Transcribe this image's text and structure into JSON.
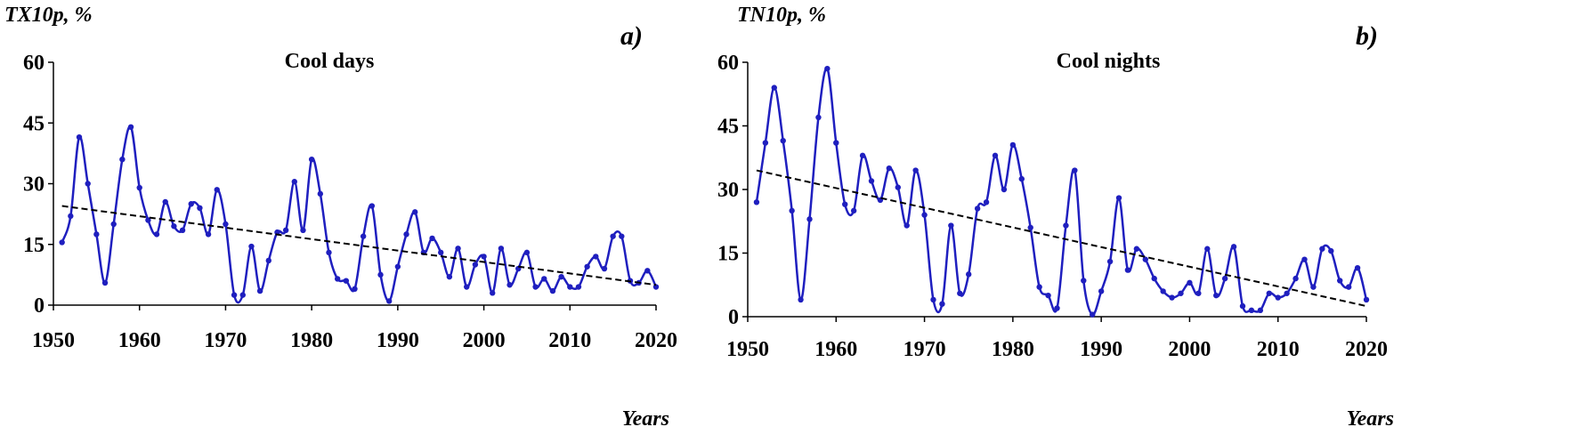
{
  "chart_data": [
    {
      "type": "line",
      "y_label": "TX10p, %",
      "panel": "a)",
      "title": "Cool days",
      "x_label": "Years",
      "x": [
        1951,
        1952,
        1953,
        1954,
        1955,
        1956,
        1957,
        1958,
        1959,
        1960,
        1961,
        1962,
        1963,
        1964,
        1965,
        1966,
        1967,
        1968,
        1969,
        1970,
        1971,
        1972,
        1973,
        1974,
        1975,
        1976,
        1977,
        1978,
        1979,
        1980,
        1981,
        1982,
        1983,
        1984,
        1985,
        1986,
        1987,
        1988,
        1989,
        1990,
        1991,
        1992,
        1993,
        1994,
        1995,
        1996,
        1997,
        1998,
        1999,
        2000,
        2001,
        2002,
        2003,
        2004,
        2005,
        2006,
        2007,
        2008,
        2009,
        2010,
        2011,
        2012,
        2013,
        2014,
        2015,
        2016,
        2017,
        2018,
        2019,
        2020
      ],
      "values": [
        15.5,
        22,
        41.5,
        30,
        17.5,
        5.5,
        20,
        36,
        44,
        29,
        21,
        17.5,
        25.5,
        19.5,
        18.5,
        25,
        24,
        17.5,
        28.5,
        20,
        2.5,
        2.5,
        14.5,
        3.5,
        11,
        18,
        18.5,
        30.5,
        18.5,
        36,
        27.5,
        13,
        6.5,
        6,
        4,
        17,
        24.5,
        7.5,
        1,
        9.5,
        17.5,
        23,
        13,
        16.5,
        13,
        7,
        14,
        4.5,
        10,
        12,
        3,
        14,
        5,
        9,
        13,
        4.5,
        6.5,
        3.5,
        7,
        4.5,
        4.5,
        9.5,
        12,
        9,
        17,
        17,
        6,
        5.5,
        8.5,
        4.5
      ],
      "color": "#1f1fbf",
      "trend": {
        "x": [
          1951,
          2020
        ],
        "values": [
          24.5,
          5
        ]
      },
      "xlim": [
        1950,
        2020
      ],
      "xticks": [
        1950,
        1960,
        1970,
        1980,
        1990,
        2000,
        2010,
        2020
      ],
      "ylim": [
        0,
        60
      ],
      "yticks": [
        0,
        15,
        30,
        45,
        60
      ]
    },
    {
      "type": "line",
      "y_label": "TN10p, %",
      "panel": "b)",
      "title": "Cool nights",
      "x_label": "Years",
      "x": [
        1951,
        1952,
        1953,
        1954,
        1955,
        1956,
        1957,
        1958,
        1959,
        1960,
        1961,
        1962,
        1963,
        1964,
        1965,
        1966,
        1967,
        1968,
        1969,
        1970,
        1971,
        1972,
        1973,
        1974,
        1975,
        1976,
        1977,
        1978,
        1979,
        1980,
        1981,
        1982,
        1983,
        1984,
        1985,
        1986,
        1987,
        1988,
        1989,
        1990,
        1991,
        1992,
        1993,
        1994,
        1995,
        1996,
        1997,
        1998,
        1999,
        2000,
        2001,
        2002,
        2003,
        2004,
        2005,
        2006,
        2007,
        2008,
        2009,
        2010,
        2011,
        2012,
        2013,
        2014,
        2015,
        2016,
        2017,
        2018,
        2019,
        2020
      ],
      "values": [
        27,
        41,
        54,
        41.5,
        25,
        4,
        23,
        47,
        58.5,
        41,
        26.5,
        25,
        38,
        32,
        27.5,
        35,
        30.5,
        21.5,
        34.5,
        24,
        4,
        3,
        21.5,
        5.5,
        10,
        25.5,
        27,
        38,
        30,
        40.5,
        32.5,
        21,
        7,
        5,
        2,
        21.5,
        34.5,
        8.5,
        0.5,
        6,
        13,
        28,
        11,
        16,
        13.5,
        9,
        6,
        4.5,
        5.5,
        8,
        5.5,
        16,
        5,
        9,
        16.5,
        2.5,
        1.5,
        1.5,
        5.5,
        4.5,
        5.5,
        9,
        13.5,
        7,
        16,
        15.5,
        8.5,
        7,
        11.5,
        4
      ],
      "color": "#1f1fbf",
      "trend": {
        "x": [
          1951,
          2020
        ],
        "values": [
          34.5,
          2.5
        ]
      },
      "xlim": [
        1950,
        2020
      ],
      "xticks": [
        1950,
        1960,
        1970,
        1980,
        1990,
        2000,
        2010,
        2020
      ],
      "ylim": [
        0,
        60
      ],
      "yticks": [
        0,
        15,
        30,
        45,
        60
      ]
    }
  ]
}
